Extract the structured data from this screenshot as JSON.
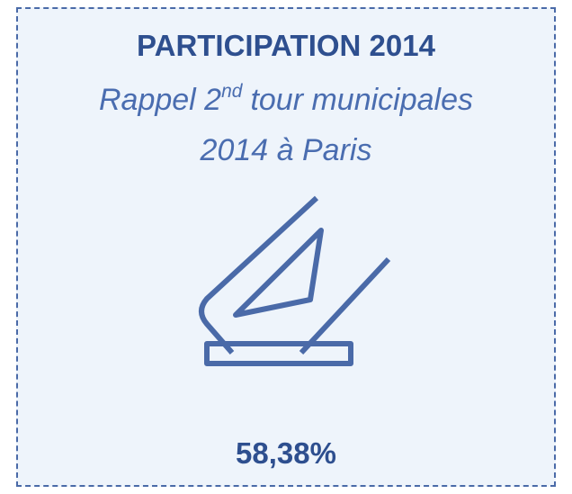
{
  "card": {
    "title": "PARTICIPATION 2014",
    "subtitle": {
      "before": "Rappel 2",
      "superscript": "nd",
      "after": "tour municipales",
      "line2": "2014 à Paris"
    },
    "value": "58,38%"
  }
}
